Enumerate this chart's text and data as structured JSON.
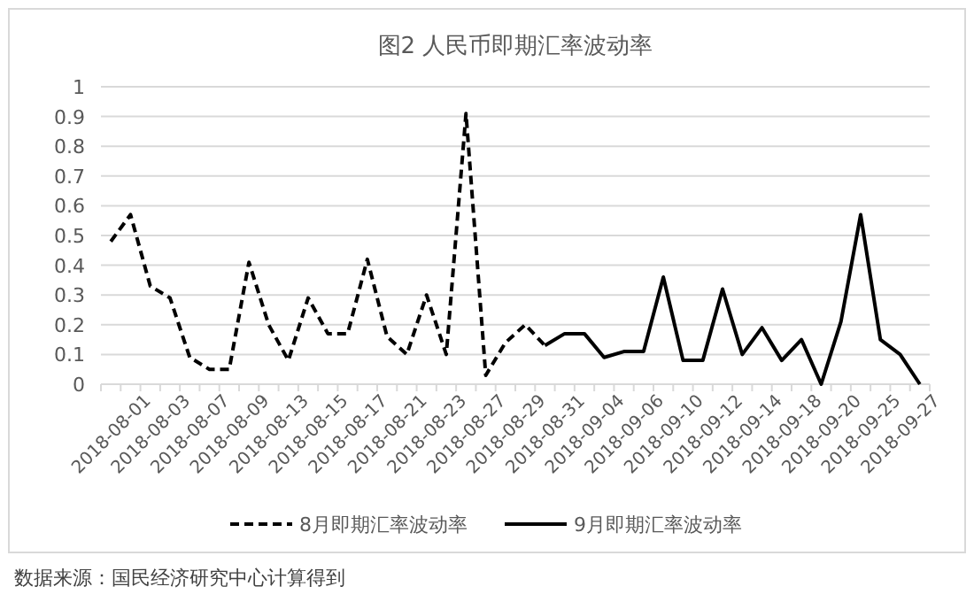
{
  "chart_data": {
    "type": "line",
    "title": "图2 人民币即期汇率波动率",
    "categories": [
      "2018-08-01",
      null,
      "2018-08-03",
      null,
      "2018-08-07",
      null,
      "2018-08-09",
      null,
      "2018-08-13",
      null,
      "2018-08-15",
      null,
      "2018-08-17",
      null,
      "2018-08-21",
      null,
      "2018-08-23",
      null,
      "2018-08-27",
      null,
      "2018-08-29",
      null,
      "2018-08-31",
      null,
      "2018-09-04",
      null,
      "2018-09-06",
      null,
      "2018-09-10",
      null,
      "2018-09-12",
      null,
      "2018-09-14",
      null,
      "2018-09-18",
      null,
      "2018-09-20",
      null,
      "2018-09-25",
      null,
      "2018-09-27",
      null
    ],
    "series": [
      {
        "name": "8月即期汇率波动率",
        "color": "#000000",
        "line_style": "dashed",
        "values": [
          0.48,
          0.57,
          0.33,
          0.29,
          0.09,
          0.05,
          0.05,
          0.41,
          0.2,
          0.08,
          0.29,
          0.17,
          0.17,
          0.42,
          0.16,
          0.1,
          0.3,
          0.1,
          0.91,
          0.03,
          0.14,
          0.2,
          0.13,
          null,
          null,
          null,
          null,
          null,
          null,
          null,
          null,
          null,
          null,
          null,
          null,
          null,
          null,
          null,
          null,
          null,
          null,
          null
        ]
      },
      {
        "name": "9月即期汇率波动率",
        "color": "#000000",
        "line_style": "solid",
        "values": [
          null,
          null,
          null,
          null,
          null,
          null,
          null,
          null,
          null,
          null,
          null,
          null,
          null,
          null,
          null,
          null,
          null,
          null,
          null,
          null,
          null,
          null,
          0.13,
          0.17,
          0.17,
          0.09,
          0.11,
          0.11,
          0.36,
          0.08,
          0.08,
          0.32,
          0.1,
          0.19,
          0.08,
          0.15,
          0,
          0.21,
          0.57,
          0.15,
          0.1,
          0
        ]
      }
    ],
    "ylim": [
      0,
      1
    ],
    "yticks": [
      0,
      0.1,
      0.2,
      0.3,
      0.4,
      0.5,
      0.6,
      0.7,
      0.8,
      0.9,
      1
    ],
    "grid": "y",
    "legend": "bottom",
    "marker": "none",
    "annotations": [
      "数据来源：国民经济研究中心计算得到"
    ]
  }
}
